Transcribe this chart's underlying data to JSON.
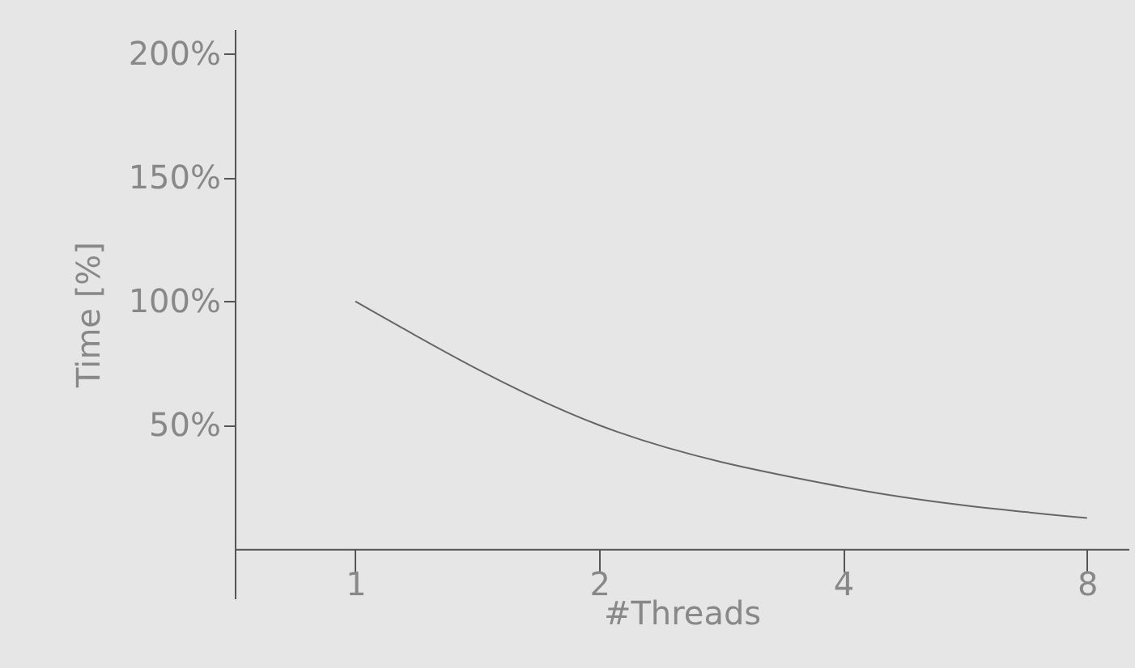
{
  "chart_data": {
    "type": "line",
    "xlabel": "#Threads",
    "ylabel": "Time [%]",
    "x": [
      1,
      2,
      4,
      8
    ],
    "series": [
      {
        "color": "#666666",
        "values": [
          100,
          50,
          25,
          12.5
        ]
      }
    ],
    "log": "x",
    "xlim": [
      0.71,
      9
    ],
    "xticks": [
      1,
      2,
      4,
      8
    ],
    "ylim": [
      -20,
      210
    ],
    "yticks": [
      {
        "value": 50,
        "label": "50%"
      },
      {
        "value": 100,
        "label": "100%"
      },
      {
        "value": 150,
        "label": "150%"
      },
      {
        "value": 200,
        "label": "200%"
      }
    ],
    "grid": false,
    "marker": "none",
    "line_style": "solid"
  }
}
